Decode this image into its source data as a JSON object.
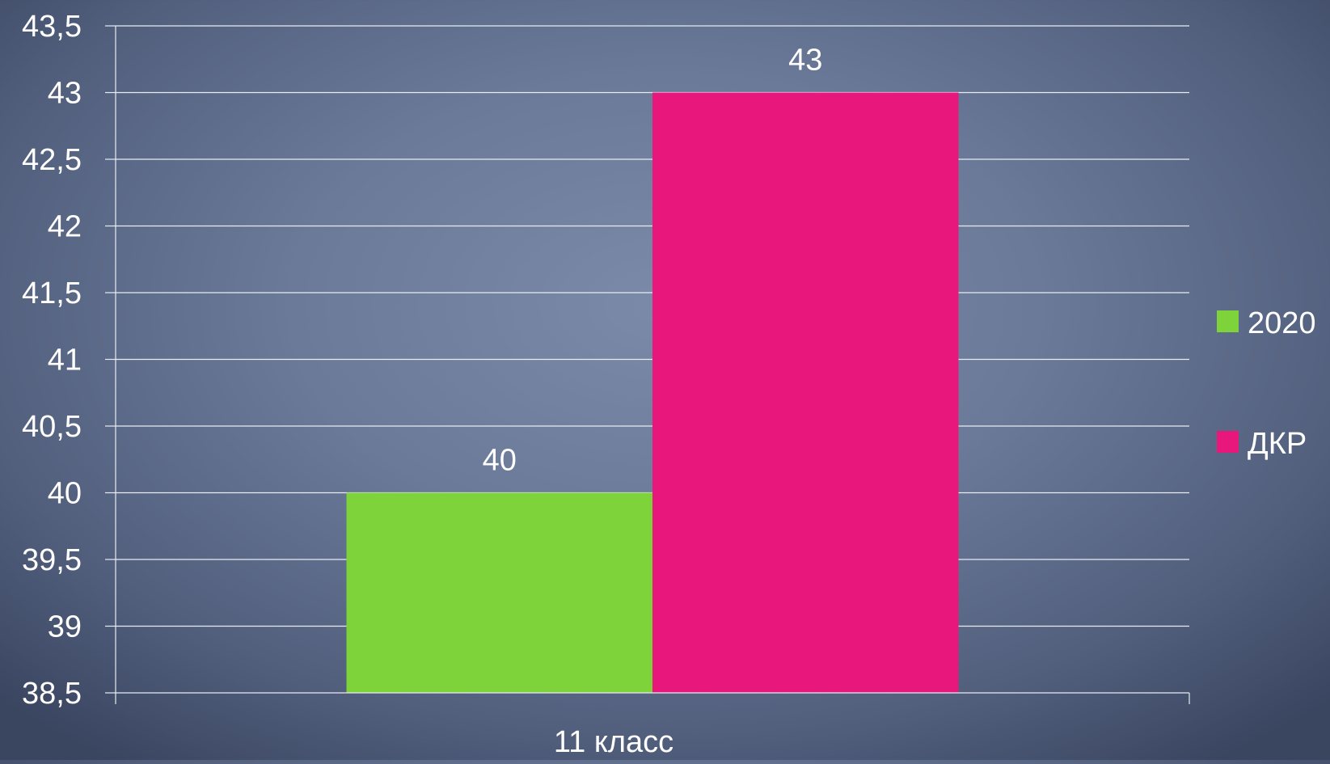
{
  "chart_data": {
    "type": "bar",
    "categories": [
      "11 класс"
    ],
    "series": [
      {
        "name": "2020",
        "values": [
          40
        ],
        "color": "#7ed23a"
      },
      {
        "name": "ДКР",
        "values": [
          43
        ],
        "color": "#e8177c"
      }
    ],
    "ylim": [
      38.5,
      43.5
    ],
    "yticks": [
      "38,5",
      "39",
      "39,5",
      "40",
      "40,5",
      "41",
      "41,5",
      "42",
      "42,5",
      "43",
      "43,5"
    ],
    "ytick_values": [
      38.5,
      39,
      39.5,
      40,
      40.5,
      41,
      41.5,
      42,
      42.5,
      43,
      43.5
    ],
    "data_labels": [
      "40",
      "43"
    ],
    "grid": true,
    "legend_position": "right",
    "title": "",
    "xlabel": "",
    "ylabel": ""
  }
}
